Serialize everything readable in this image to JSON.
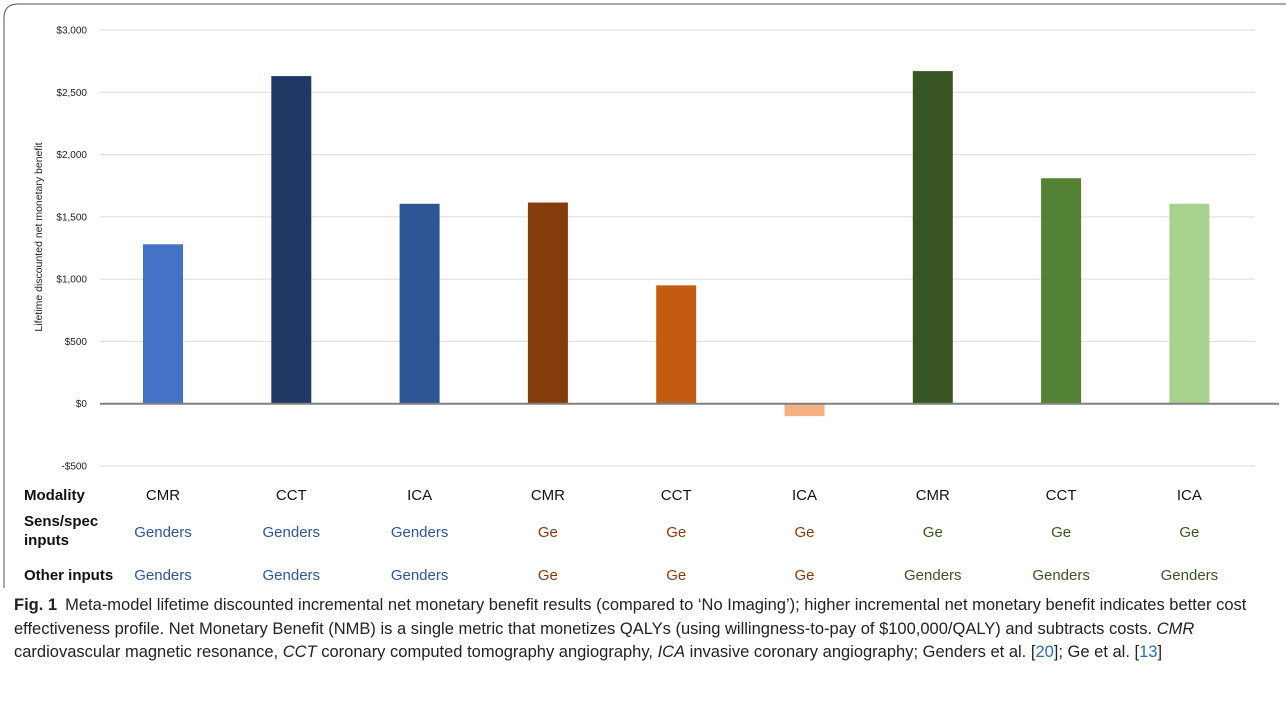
{
  "chart_data": {
    "type": "bar",
    "ylabel": "Lifetime discounted net monetary benefit",
    "ylim": [
      -500,
      3000
    ],
    "yticks": [
      -500,
      0,
      500,
      1000,
      1500,
      2000,
      2500,
      3000
    ],
    "ytick_labels": [
      "-$500",
      "$0",
      "$500",
      "$1,000",
      "$1,500",
      "$2,000",
      "$2,500",
      "$3,000"
    ],
    "grid": true,
    "categories": [
      "CMR",
      "CCT",
      "ICA",
      "CMR",
      "CCT",
      "ICA",
      "CMR",
      "CCT",
      "ICA"
    ],
    "values": [
      1280,
      2630,
      1605,
      1615,
      950,
      -100,
      2670,
      1810,
      1605
    ],
    "colors": [
      "#4472c4",
      "#1f3864",
      "#2f5597",
      "#843c0c",
      "#c55a11",
      "#f4b183",
      "#375623",
      "#548235",
      "#a9d18e"
    ],
    "table": {
      "row_labels": {
        "modality": "Modality",
        "sens_line1": "Sens/spec",
        "sens_line2": "inputs",
        "other": "Other inputs"
      },
      "sens_spec": [
        "Genders",
        "Genders",
        "Genders",
        "Ge",
        "Ge",
        "Ge",
        "Ge",
        "Ge",
        "Ge"
      ],
      "other_inputs": [
        "Genders",
        "Genders",
        "Genders",
        "Ge",
        "Ge",
        "Ge",
        "Genders",
        "Genders",
        "Genders"
      ],
      "sens_colors": [
        "#2f5597",
        "#2f5597",
        "#2f5597",
        "#843c0c",
        "#843c0c",
        "#843c0c",
        "#375623",
        "#375623",
        "#375623"
      ],
      "other_colors": [
        "#2f5597",
        "#2f5597",
        "#2f5597",
        "#843c0c",
        "#843c0c",
        "#843c0c",
        "#375623",
        "#375623",
        "#375623"
      ]
    }
  },
  "caption": {
    "fig_label": "Fig. 1",
    "text_1": "Meta-model lifetime discounted incremental net monetary benefit results (compared to ‘No Imaging’); higher incremental net monetary benefit indicates better cost effectiveness profile. Net Monetary Benefit (NMB) is a single metric that monetizes QALYs (using willingness-to-pay of $100,000/QALY) and subtracts costs. ",
    "abbr_cmr": "CMR",
    "def_cmr": " cardiovascular magnetic resonance, ",
    "abbr_cct": "CCT",
    "def_cct": " coronary computed tomography angiography, ",
    "abbr_ica": "ICA",
    "def_ica": " invasive coronary angiography; Genders et al. [",
    "ref_1": "20",
    "mid": "]; Ge et al. [",
    "ref_2": "13",
    "end": "]"
  }
}
